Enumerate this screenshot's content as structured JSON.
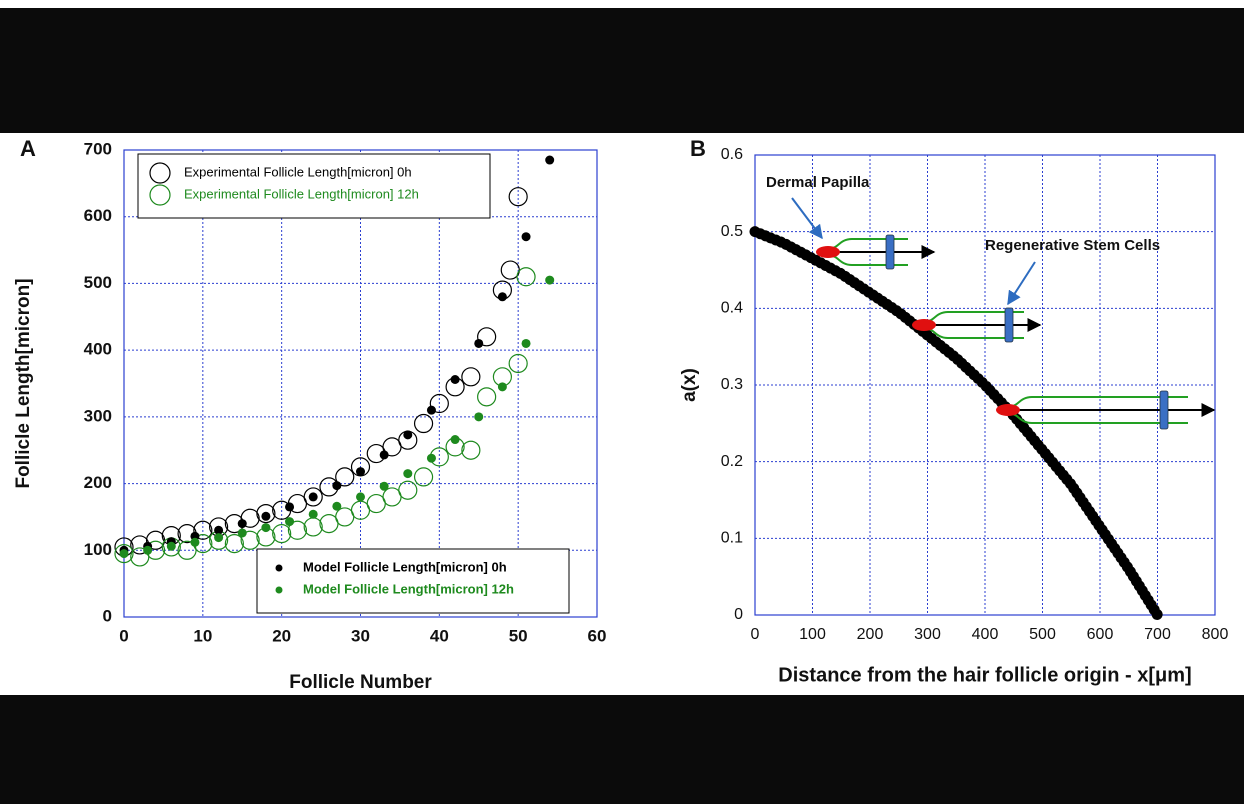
{
  "chart_data": [
    {
      "type": "scatter",
      "panel_label": "A",
      "xlabel": "Follicle Number",
      "ylabel": "Follicle Length[micron]",
      "xlim": [
        0,
        60
      ],
      "ylim": [
        0,
        700
      ],
      "xticks": [
        0,
        10,
        20,
        30,
        40,
        50,
        60
      ],
      "yticks": [
        0,
        100,
        200,
        300,
        400,
        500,
        600,
        700
      ],
      "grid": true,
      "series": [
        {
          "name": "Experimental Follicle Length[micron] 0h",
          "color": "#000000",
          "marker": "open-circle",
          "legend": "upper left",
          "x": [
            0,
            2,
            4,
            6,
            8,
            10,
            12,
            14,
            16,
            18,
            20,
            22,
            24,
            26,
            28,
            30,
            32,
            34,
            36,
            38,
            40,
            42,
            44,
            46,
            48,
            49,
            50
          ],
          "values": [
            105,
            108,
            115,
            122,
            125,
            130,
            135,
            140,
            148,
            155,
            160,
            170,
            180,
            195,
            210,
            225,
            245,
            255,
            265,
            290,
            320,
            345,
            360,
            420,
            490,
            520,
            630
          ]
        },
        {
          "name": "Experimental Follicle Length[micron] 12h",
          "color": "#1e8a1e",
          "marker": "open-circle",
          "legend": "upper left",
          "x": [
            0,
            2,
            4,
            6,
            8,
            10,
            12,
            14,
            16,
            18,
            20,
            22,
            24,
            26,
            28,
            30,
            32,
            34,
            36,
            38,
            40,
            42,
            44,
            46,
            48,
            50,
            51
          ],
          "values": [
            95,
            90,
            100,
            105,
            100,
            110,
            115,
            110,
            115,
            120,
            125,
            130,
            135,
            140,
            150,
            160,
            170,
            180,
            190,
            210,
            240,
            255,
            250,
            330,
            360,
            380,
            510
          ]
        },
        {
          "name": "Model Follicle Length[micron] 0h",
          "color": "#000000",
          "marker": "dot",
          "legend": "lower right",
          "x": [
            0,
            3,
            6,
            9,
            12,
            15,
            18,
            21,
            24,
            27,
            30,
            33,
            36,
            39,
            42,
            45,
            48,
            51,
            54
          ],
          "values": [
            100,
            106,
            113,
            121,
            130,
            140,
            151,
            165,
            180,
            197,
            218,
            243,
            273,
            310,
            356,
            410,
            480,
            570,
            685
          ]
        },
        {
          "name": "Model Follicle Length[micron] 12h",
          "color": "#1e8a1e",
          "marker": "dot",
          "legend": "lower right",
          "x": [
            0,
            3,
            6,
            9,
            12,
            15,
            18,
            21,
            24,
            27,
            30,
            33,
            36,
            39,
            42,
            45,
            48,
            51,
            54
          ],
          "values": [
            95,
            100,
            106,
            112,
            119,
            126,
            134,
            143,
            154,
            166,
            180,
            196,
            215,
            238,
            266,
            300,
            345,
            410,
            505
          ]
        }
      ]
    },
    {
      "type": "line",
      "panel_label": "B",
      "xlabel": "Distance from the hair follicle origin - x[μm]",
      "ylabel": "a(x)",
      "xlim": [
        0,
        800
      ],
      "ylim": [
        0,
        0.6
      ],
      "xticks": [
        0,
        100,
        200,
        300,
        400,
        500,
        600,
        700,
        800
      ],
      "yticks": [
        0,
        0.1,
        0.2,
        0.3,
        0.4,
        0.5,
        0.6
      ],
      "grid": true,
      "annotations": [
        "Dermal Papilla",
        "Regenerative Stem Cells"
      ],
      "series": [
        {
          "color": "#000000",
          "x": [
            0,
            50,
            100,
            150,
            200,
            250,
            300,
            350,
            400,
            450,
            500,
            550,
            600,
            650,
            700
          ],
          "values": [
            0.5,
            0.485,
            0.465,
            0.445,
            0.42,
            0.395,
            0.365,
            0.335,
            0.3,
            0.26,
            0.215,
            0.17,
            0.115,
            0.06,
            0
          ]
        }
      ]
    }
  ]
}
